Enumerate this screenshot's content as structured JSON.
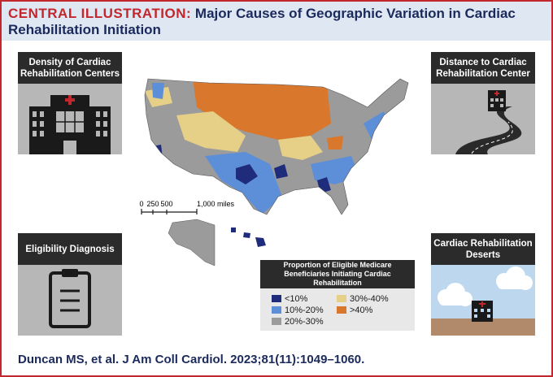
{
  "header": {
    "label": "CENTRAL ILLUSTRATION:",
    "title": "Major Causes of Geographic Variation in Cardiac Rehabilitation Initiation"
  },
  "panels": [
    {
      "title": "Density of Cardiac Rehabilitation Centers"
    },
    {
      "title": "Distance to Cardiac Rehabilitation Center"
    },
    {
      "title": "Eligibility Diagnosis"
    },
    {
      "title": "Cardiac Rehabilitation Deserts"
    }
  ],
  "scale_bar": {
    "labels": [
      "0",
      "250",
      "500",
      "1,000 miles"
    ]
  },
  "legend": {
    "title": "Proportion of Eligible Medicare Beneficiaries Initiating Cardiac Rehabilitation",
    "items": [
      {
        "label": "<10%",
        "color": "#1f2c7c"
      },
      {
        "label": "10%-20%",
        "color": "#5d8fd8"
      },
      {
        "label": "20%-30%",
        "color": "#9b9b9b"
      },
      {
        "label": "30%-40%",
        "color": "#e6cf86"
      },
      {
        "label": ">40%",
        "color": "#d9782d"
      }
    ]
  },
  "citation": "Duncan MS, et al. J Am Coll Cardiol. 2023;81(11):1049–1060."
}
